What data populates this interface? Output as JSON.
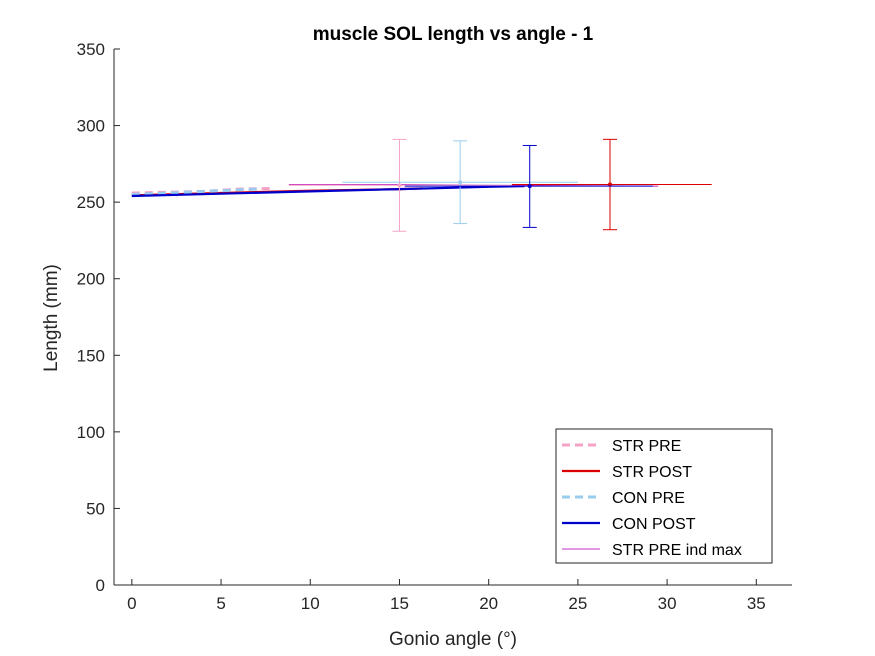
{
  "chart_data": {
    "type": "line",
    "title": "muscle SOL length vs angle - 1",
    "xlabel": "Gonio angle (°)",
    "ylabel": "Length (mm)",
    "xlim": [
      -1,
      37
    ],
    "ylim": [
      0,
      350
    ],
    "xticks": [
      0,
      5,
      10,
      15,
      20,
      25,
      30,
      35
    ],
    "yticks": [
      0,
      50,
      100,
      150,
      200,
      250,
      300,
      350
    ],
    "grid": false,
    "legend_position": "bottom-right",
    "series": [
      {
        "name": "STR PRE",
        "color": "#f5a3c7",
        "style": "dashed",
        "points": [
          [
            0,
            256
          ],
          [
            2,
            256.5
          ],
          [
            4,
            257
          ],
          [
            6,
            258.5
          ],
          [
            8,
            259
          ]
        ],
        "errorbar": {
          "x": 15,
          "y": 261,
          "ylow": 231,
          "yhigh": 291,
          "xlow": 8.8,
          "xhigh": 21.3
        }
      },
      {
        "name": "STR POST",
        "color": "#dd0000",
        "style": "solid",
        "points": [
          [
            0,
            254.5
          ],
          [
            5,
            256
          ],
          [
            10,
            257.5
          ],
          [
            15,
            258.5
          ],
          [
            16.3,
            259
          ]
        ],
        "errorbar": {
          "x": 26.8,
          "y": 261.5,
          "ylow": 232,
          "yhigh": 291,
          "xlow": 21.3,
          "xhigh": 32.5
        }
      },
      {
        "name": "CON PRE",
        "color": "#99ccee",
        "style": "dashed",
        "points": [
          [
            0,
            255
          ],
          [
            2,
            256
          ],
          [
            4,
            257
          ],
          [
            6,
            258
          ],
          [
            7,
            258.5
          ]
        ],
        "errorbar": {
          "x": 18.4,
          "y": 263,
          "ylow": 236,
          "yhigh": 290,
          "xlow": 11.8,
          "xhigh": 25
        }
      },
      {
        "name": "CON POST",
        "color": "#0000cc",
        "style": "solid",
        "points": [
          [
            0,
            254
          ],
          [
            5,
            255.5
          ],
          [
            10,
            257
          ],
          [
            15,
            258.5
          ],
          [
            20,
            260
          ],
          [
            22,
            260.5
          ]
        ],
        "errorbar": {
          "x": 22.3,
          "y": 260.5,
          "ylow": 233.5,
          "yhigh": 287,
          "xlow": 15.3,
          "xhigh": 29.2
        }
      },
      {
        "name": "STR PRE ind max",
        "color": "#c030c0",
        "style": "thin",
        "points": [
          [
            8.8,
            261.5
          ],
          [
            15,
            261.5
          ],
          [
            20,
            261
          ],
          [
            29.5,
            260.5
          ]
        ]
      }
    ]
  }
}
